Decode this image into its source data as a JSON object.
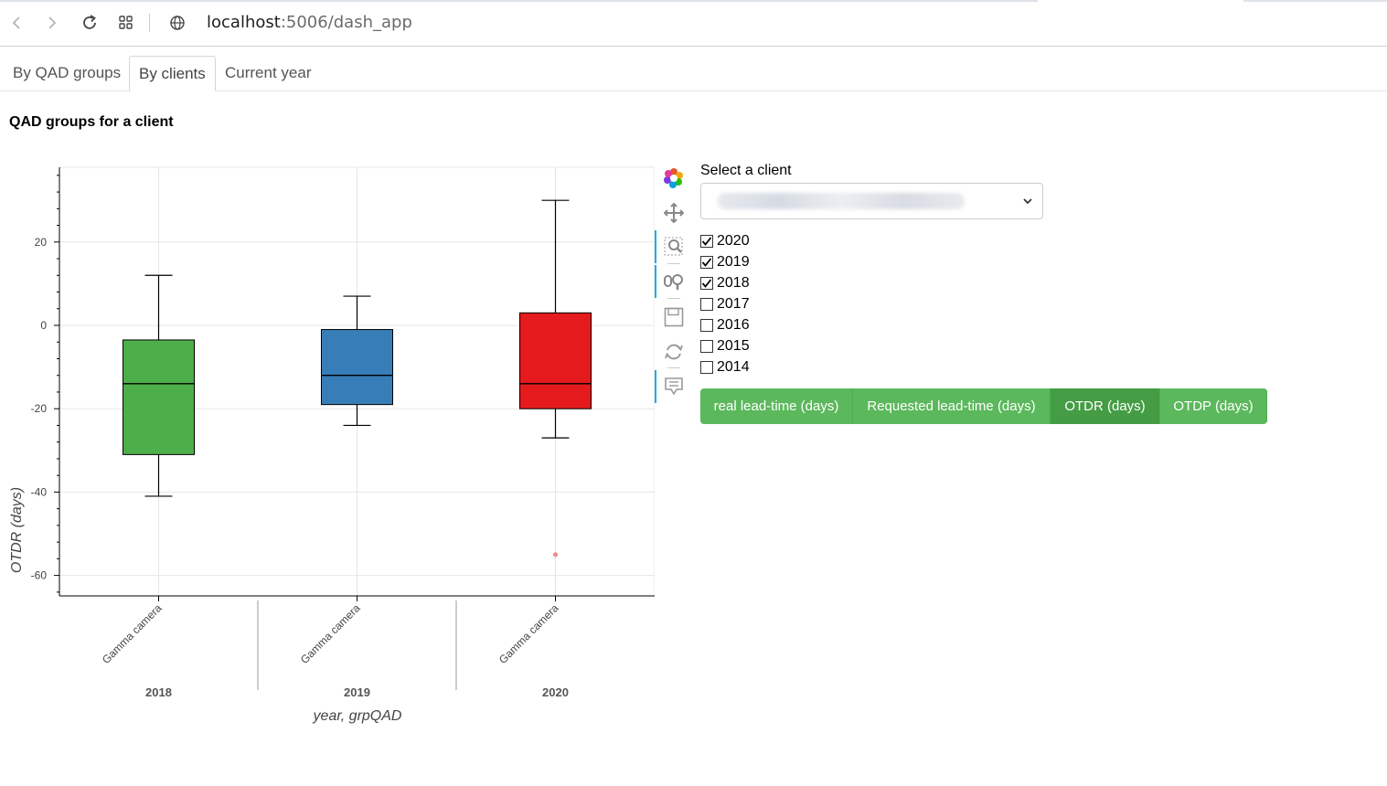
{
  "browser": {
    "url_host": "localhost",
    "url_rest": ":5006/dash_app"
  },
  "tabs": [
    {
      "label": "By QAD groups",
      "active": false
    },
    {
      "label": "By clients",
      "active": true
    },
    {
      "label": "Current year",
      "active": false
    }
  ],
  "page_title": "QAD groups for a client",
  "controls": {
    "select_label": "Select a client",
    "years": [
      {
        "label": "2020",
        "checked": true
      },
      {
        "label": "2019",
        "checked": true
      },
      {
        "label": "2018",
        "checked": true
      },
      {
        "label": "2017",
        "checked": false
      },
      {
        "label": "2016",
        "checked": false
      },
      {
        "label": "2015",
        "checked": false
      },
      {
        "label": "2014",
        "checked": false
      }
    ],
    "metric_buttons": [
      {
        "label": "real lead-time (days)",
        "active": false
      },
      {
        "label": "Requested lead-time (days)",
        "active": false
      },
      {
        "label": "OTDR (days)",
        "active": true
      },
      {
        "label": "OTDP (days)",
        "active": false
      }
    ]
  },
  "toolbar": [
    "bokeh-logo-icon",
    "pan-icon",
    "box-zoom-icon",
    "wheel-zoom-icon",
    "save-icon",
    "reset-icon",
    "hover-icon"
  ],
  "chart_data": {
    "type": "box",
    "ylabel": "OTDR (days)",
    "xlabel": "year, grpQAD",
    "ylim": [
      -65,
      38
    ],
    "yticks": [
      -60,
      -40,
      -20,
      0,
      20
    ],
    "grid": true,
    "categories": [
      {
        "year": "2018",
        "group": "Gamma camera",
        "color": "#4daf4a",
        "lower_whisker": -41,
        "q1": -31,
        "median": -14,
        "q3": -3.5,
        "upper_whisker": 12,
        "outliers": []
      },
      {
        "year": "2019",
        "group": "Gamma camera",
        "color": "#377eb8",
        "lower_whisker": -24,
        "q1": -19,
        "median": -12,
        "q3": -1,
        "upper_whisker": 7,
        "outliers": []
      },
      {
        "year": "2020",
        "group": "Gamma camera",
        "color": "#e41a1c",
        "lower_whisker": -27,
        "q1": -20,
        "median": -14,
        "q3": 3,
        "upper_whisker": 30,
        "outliers": [
          -55
        ]
      }
    ]
  }
}
